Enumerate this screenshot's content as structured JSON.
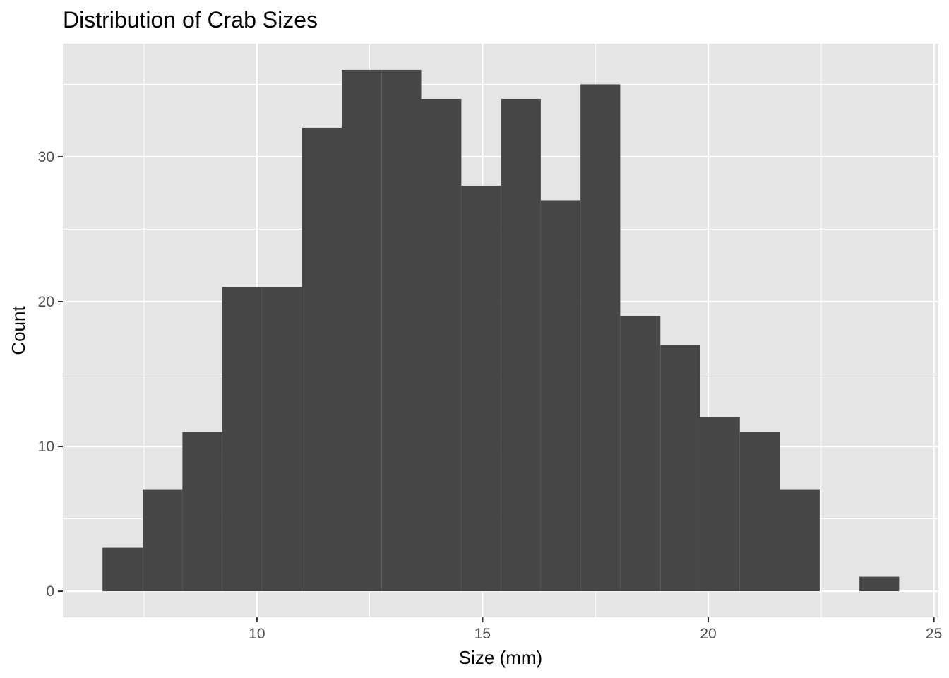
{
  "chart_data": {
    "type": "bar",
    "title": "Distribution of Crab Sizes",
    "xlabel": "Size (mm)",
    "ylabel": "Count",
    "xlim": [
      5.7,
      25.1
    ],
    "ylim": [
      -1.8,
      37.8
    ],
    "xticks": [
      10,
      15,
      20,
      25
    ],
    "xtick_labels": [
      "10",
      "15",
      "20",
      "25"
    ],
    "x_minor": [
      7.5,
      12.5,
      17.5,
      22.5
    ],
    "yticks": [
      0,
      10,
      20,
      30
    ],
    "ytick_labels": [
      "0",
      "10",
      "20",
      "30"
    ],
    "y_minor": [
      5,
      15,
      25,
      35
    ],
    "grid": true,
    "panel_color": "#e5e5e5",
    "bar_color": "#474747",
    "bins": [
      {
        "x0": 6.58,
        "x1": 7.47,
        "count": 3
      },
      {
        "x0": 7.47,
        "x1": 8.35,
        "count": 7
      },
      {
        "x0": 8.35,
        "x1": 9.23,
        "count": 11
      },
      {
        "x0": 9.23,
        "x1": 10.11,
        "count": 21
      },
      {
        "x0": 10.11,
        "x1": 11.0,
        "count": 21
      },
      {
        "x0": 11.0,
        "x1": 11.88,
        "count": 32
      },
      {
        "x0": 11.88,
        "x1": 12.76,
        "count": 36
      },
      {
        "x0": 12.76,
        "x1": 13.64,
        "count": 36
      },
      {
        "x0": 13.64,
        "x1": 14.53,
        "count": 34
      },
      {
        "x0": 14.53,
        "x1": 15.41,
        "count": 28
      },
      {
        "x0": 15.41,
        "x1": 16.29,
        "count": 34
      },
      {
        "x0": 16.29,
        "x1": 17.17,
        "count": 27
      },
      {
        "x0": 17.17,
        "x1": 18.05,
        "count": 35
      },
      {
        "x0": 18.05,
        "x1": 18.94,
        "count": 19
      },
      {
        "x0": 18.94,
        "x1": 19.82,
        "count": 17
      },
      {
        "x0": 19.82,
        "x1": 20.7,
        "count": 12
      },
      {
        "x0": 20.7,
        "x1": 21.58,
        "count": 11
      },
      {
        "x0": 21.58,
        "x1": 22.47,
        "count": 7
      },
      {
        "x0": 22.47,
        "x1": 23.35,
        "count": 0
      },
      {
        "x0": 23.35,
        "x1": 24.23,
        "count": 1
      }
    ]
  }
}
